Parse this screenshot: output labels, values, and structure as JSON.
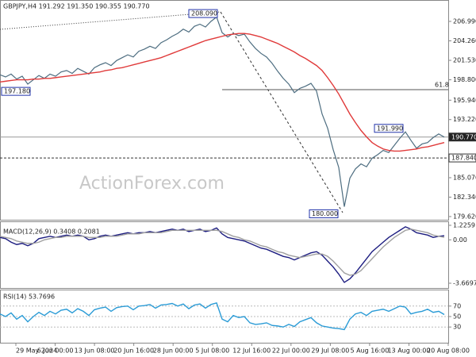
{
  "header": "GBPJPY,H4  191.292 191.350 190.355 190.770",
  "watermark": "ActionForex.com",
  "x_axis_labels": [
    "29 May 2024",
    "6 Jun 00:00",
    "13 Jun 08:00",
    "20 Jun 16:00",
    "28 Jun 00:00",
    "5 Jul 08:00",
    "12 Jul 16:00",
    "22 Jul 00:00",
    "29 Jul 08:00",
    "5 Aug 16:00",
    "13 Aug 00:00",
    "20 Aug 08:00"
  ],
  "chart_data": [
    {
      "type": "line",
      "ylim": [
        179.06,
        209.99
      ],
      "yticks": [
        {
          "value": 206.99,
          "label": "206.990"
        },
        {
          "value": 204.26,
          "label": "204.260"
        },
        {
          "value": 201.53,
          "label": "201.530"
        },
        {
          "value": 198.8,
          "label": "198.800"
        },
        {
          "value": 195.94,
          "label": "195.940"
        },
        {
          "value": 193.22,
          "label": "193.220"
        },
        {
          "value": 185.07,
          "label": "185.070"
        },
        {
          "value": 182.34,
          "label": "182.340"
        },
        {
          "value": 179.62,
          "label": "179.620"
        }
      ],
      "series": [
        {
          "color": "#4d6d80",
          "values": [
            199.5,
            199.2,
            199.6,
            198.9,
            199.3,
            198.2,
            198.8,
            199.4,
            199.0,
            199.6,
            199.3,
            199.9,
            200.1,
            199.7,
            200.4,
            200.0,
            199.6,
            200.5,
            200.9,
            201.2,
            200.8,
            201.5,
            201.9,
            202.3,
            202.0,
            202.8,
            203.1,
            203.5,
            203.2,
            204.0,
            204.4,
            204.9,
            205.3,
            205.9,
            205.5,
            206.3,
            206.6,
            206.2,
            207.0,
            207.6,
            205.4,
            204.8,
            205.3,
            205.0,
            205.2,
            204.1,
            203.2,
            202.5,
            202.0,
            201.1,
            200.0,
            199.0,
            198.2,
            197.0,
            197.6,
            197.9,
            198.3,
            197.2,
            194.0,
            192.0,
            189.0,
            186.5,
            181.0,
            185.0,
            186.3,
            187.0,
            186.6,
            187.8,
            188.3,
            188.9,
            188.6,
            189.6,
            190.6,
            191.5,
            190.3,
            189.2,
            189.8,
            190.0,
            190.7,
            191.2,
            190.77
          ]
        },
        {
          "color": "#e03a3a",
          "values": [
            198.5,
            198.6,
            198.7,
            198.8,
            198.8,
            198.8,
            198.9,
            198.9,
            199.0,
            199.0,
            199.1,
            199.2,
            199.3,
            199.4,
            199.5,
            199.6,
            199.7,
            199.8,
            199.9,
            200.1,
            200.2,
            200.4,
            200.5,
            200.7,
            200.9,
            201.1,
            201.3,
            201.5,
            201.7,
            201.9,
            202.2,
            202.5,
            202.8,
            203.1,
            203.4,
            203.7,
            204.0,
            204.3,
            204.5,
            204.7,
            204.9,
            205.1,
            205.2,
            205.3,
            205.3,
            205.2,
            205.0,
            204.8,
            204.5,
            204.2,
            203.9,
            203.5,
            203.1,
            202.7,
            202.2,
            201.8,
            201.3,
            200.8,
            200.1,
            199.1,
            198.0,
            196.8,
            195.4,
            194.0,
            192.8,
            191.7,
            190.8,
            190.0,
            189.5,
            189.1,
            188.9,
            188.8,
            188.8,
            188.9,
            189.0,
            189.1,
            189.3,
            189.4,
            189.6,
            189.8,
            190.0
          ]
        }
      ],
      "levels": [
        {
          "value": 190.77,
          "label": "190.770"
        },
        {
          "value": 187.84,
          "label": "187.840"
        }
      ],
      "fib_line": {
        "price": 197.42,
        "text": "61.8"
      },
      "annotations": [
        {
          "label": "208.090",
          "value": 208.09
        },
        {
          "label": "197.180",
          "value": 197.18
        },
        {
          "label": "191.990",
          "value": 191.99
        },
        {
          "label": "180.000",
          "value": 180.0
        }
      ]
    },
    {
      "type": "line",
      "title": "MACD(12,26,9) 0.3408 0.2081",
      "ylim": [
        -3.6697,
        1.2259
      ],
      "yticks": [
        1.2259,
        {
          "value": 0,
          "label": "0.00"
        },
        -3.6697
      ],
      "series": [
        {
          "color": "#1c1c80",
          "values": [
            0.2,
            0.1,
            -0.2,
            -0.4,
            -0.3,
            -0.5,
            -0.3,
            0.1,
            0.2,
            0.3,
            0.2,
            0.3,
            0.4,
            0.3,
            0.4,
            0.3,
            0.0,
            0.1,
            0.3,
            0.4,
            0.3,
            0.4,
            0.5,
            0.6,
            0.5,
            0.6,
            0.6,
            0.7,
            0.6,
            0.7,
            0.8,
            0.9,
            0.8,
            0.9,
            0.7,
            0.8,
            0.9,
            0.7,
            0.8,
            1.0,
            0.5,
            0.2,
            0.1,
            0.0,
            -0.1,
            -0.3,
            -0.5,
            -0.7,
            -0.8,
            -1.0,
            -1.2,
            -1.4,
            -1.5,
            -1.7,
            -1.5,
            -1.3,
            -1.1,
            -1.0,
            -1.3,
            -1.8,
            -2.3,
            -2.9,
            -3.6,
            -3.3,
            -2.8,
            -2.2,
            -1.6,
            -1.0,
            -0.6,
            -0.2,
            0.2,
            0.5,
            0.8,
            1.1,
            0.9,
            0.6,
            0.5,
            0.4,
            0.2,
            0.3,
            0.3408
          ]
        },
        {
          "color": "#a0a0a0",
          "values": [
            0.3,
            0.2,
            0.1,
            -0.1,
            -0.2,
            -0.3,
            -0.3,
            -0.2,
            0.0,
            0.1,
            0.2,
            0.2,
            0.3,
            0.3,
            0.3,
            0.3,
            0.2,
            0.2,
            0.2,
            0.3,
            0.3,
            0.3,
            0.4,
            0.5,
            0.5,
            0.5,
            0.6,
            0.6,
            0.6,
            0.6,
            0.7,
            0.8,
            0.8,
            0.8,
            0.8,
            0.8,
            0.8,
            0.8,
            0.8,
            0.8,
            0.7,
            0.5,
            0.3,
            0.2,
            0.0,
            -0.1,
            -0.3,
            -0.5,
            -0.6,
            -0.8,
            -1.0,
            -1.1,
            -1.3,
            -1.4,
            -1.5,
            -1.4,
            -1.3,
            -1.2,
            -1.2,
            -1.4,
            -1.8,
            -2.3,
            -2.8,
            -3.0,
            -2.9,
            -2.6,
            -2.1,
            -1.6,
            -1.1,
            -0.6,
            -0.2,
            0.2,
            0.5,
            0.8,
            0.9,
            0.8,
            0.7,
            0.6,
            0.4,
            0.3,
            0.2081
          ]
        }
      ]
    },
    {
      "type": "line",
      "title": "RSI(14) 53.7696",
      "ylim": [
        0,
        100
      ],
      "yticks": [
        70,
        50,
        30
      ],
      "series": [
        {
          "color": "#2a9bd6",
          "values": [
            55,
            50,
            57,
            45,
            52,
            40,
            50,
            58,
            52,
            60,
            55,
            62,
            64,
            57,
            65,
            60,
            52,
            63,
            66,
            68,
            60,
            67,
            69,
            70,
            63,
            70,
            71,
            73,
            66,
            72,
            73,
            75,
            70,
            74,
            65,
            72,
            74,
            66,
            73,
            76,
            45,
            40,
            52,
            48,
            50,
            38,
            35,
            36,
            38,
            33,
            32,
            30,
            35,
            31,
            40,
            44,
            48,
            38,
            32,
            30,
            28,
            27,
            25,
            45,
            55,
            58,
            52,
            60,
            62,
            64,
            60,
            65,
            70,
            68,
            55,
            58,
            60,
            64,
            58,
            60,
            53.7696
          ]
        }
      ]
    }
  ]
}
